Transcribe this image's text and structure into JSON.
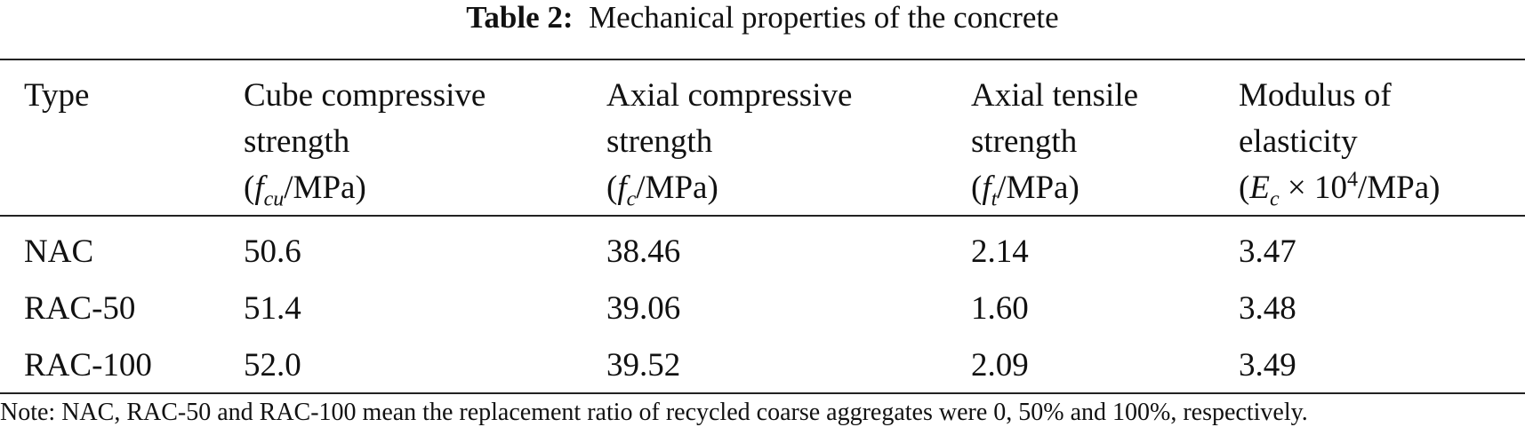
{
  "title": {
    "label": "Table 2:",
    "text": "Mechanical properties of the concrete"
  },
  "table": {
    "columns": [
      [
        "Type"
      ],
      [
        "Cube compressive",
        "strength",
        "(",
        "f",
        "cu",
        "/MPa)"
      ],
      [
        "Axial compressive",
        "strength",
        "(",
        "f",
        "c",
        "/MPa)"
      ],
      [
        "Axial tensile",
        "strength",
        "(",
        "f",
        "t",
        "/MPa)"
      ],
      [
        "Modulus of",
        "elasticity",
        "(",
        "E",
        "c",
        " × 10",
        "4",
        "/MPa)"
      ]
    ],
    "rows": [
      [
        "NAC",
        "50.6",
        "38.46",
        "2.14",
        "3.47"
      ],
      [
        "RAC-50",
        "51.4",
        "39.06",
        "1.60",
        "3.48"
      ],
      [
        "RAC-100",
        "52.0",
        "39.52",
        "2.09",
        "3.49"
      ]
    ]
  },
  "note": "Note: NAC, RAC-50 and RAC-100 mean the replacement ratio of recycled coarse aggregates were 0, 50% and 100%, respectively."
}
